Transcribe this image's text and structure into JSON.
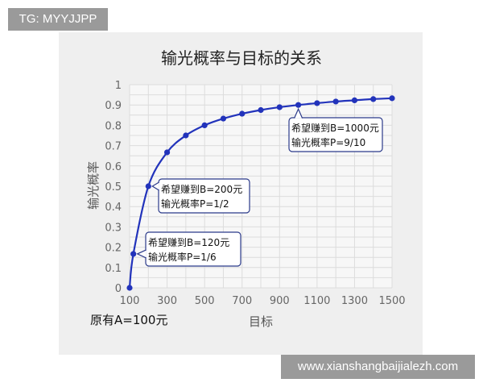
{
  "watermarks": {
    "top_left": "TG: MYYJJPP",
    "bottom_right": "www.xianshangbaijialezh.com"
  },
  "chart_data": {
    "type": "line",
    "title": "输光概率与目标的关系",
    "xlabel": "目标",
    "ylabel": "输光概率",
    "note": "原有A=100元",
    "xlim": [
      100,
      1500
    ],
    "ylim": [
      0,
      1
    ],
    "xticks": [
      "100",
      "300",
      "500",
      "700",
      "900",
      "1100",
      "1300",
      "1500"
    ],
    "yticks": [
      "0",
      "0.1",
      "0.2",
      "0.3",
      "0.4",
      "0.5",
      "0.6",
      "0.7",
      "0.8",
      "0.9",
      "1"
    ],
    "grid": true,
    "color": "#2233bb",
    "x": [
      100,
      120,
      200,
      300,
      400,
      500,
      600,
      700,
      800,
      900,
      1000,
      1100,
      1200,
      1300,
      1400,
      1500
    ],
    "y": [
      0,
      0.167,
      0.5,
      0.667,
      0.75,
      0.8,
      0.833,
      0.857,
      0.875,
      0.889,
      0.9,
      0.909,
      0.917,
      0.923,
      0.929,
      0.933
    ],
    "annotations": [
      {
        "x": 120,
        "y": 0.167,
        "line1": "希望赚到B=120元",
        "line2": "输光概率P=1/6"
      },
      {
        "x": 200,
        "y": 0.5,
        "line1": "希望赚到B=200元",
        "line2": "输光概率P=1/2"
      },
      {
        "x": 1000,
        "y": 0.9,
        "line1": "希望赚到B=1000元",
        "line2": "输光概率P=9/10"
      }
    ]
  }
}
